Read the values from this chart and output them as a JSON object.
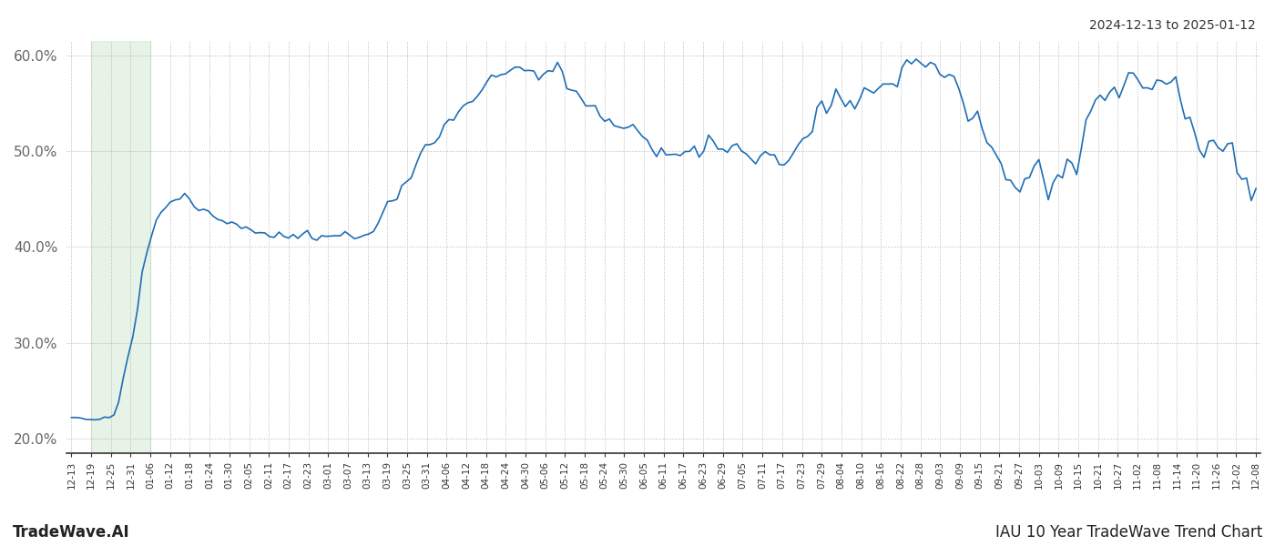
{
  "title_top_right": "2024-12-13 to 2025-01-12",
  "title_bottom_left": "TradeWave.AI",
  "title_bottom_right": "IAU 10 Year TradeWave Trend Chart",
  "line_color": "#1f6eb5",
  "line_width": 1.2,
  "background_color": "#ffffff",
  "grid_color": "#b0b0b0",
  "highlight_color": "#c8e6c9",
  "highlight_alpha": 0.45,
  "ylim": [
    0.185,
    0.615
  ],
  "yticks": [
    0.2,
    0.3,
    0.4,
    0.5,
    0.6
  ],
  "ytick_labels": [
    "20.0%",
    "30.0%",
    "40.0%",
    "50.0%",
    "60.0%"
  ],
  "x_tick_labels": [
    "12-13",
    "12-19",
    "12-25",
    "12-31",
    "01-06",
    "01-12",
    "01-18",
    "01-24",
    "01-30",
    "02-05",
    "02-11",
    "02-17",
    "02-23",
    "03-01",
    "03-07",
    "03-13",
    "03-19",
    "03-25",
    "03-31",
    "04-06",
    "04-12",
    "04-18",
    "04-24",
    "04-30",
    "05-06",
    "05-12",
    "05-18",
    "05-24",
    "05-30",
    "06-05",
    "06-11",
    "06-17",
    "06-23",
    "06-29",
    "07-05",
    "07-11",
    "07-17",
    "07-23",
    "07-29",
    "08-04",
    "08-10",
    "08-16",
    "08-22",
    "08-28",
    "09-03",
    "09-09",
    "09-15",
    "09-21",
    "09-27",
    "10-03",
    "10-09",
    "10-15",
    "10-21",
    "10-27",
    "11-02",
    "11-08",
    "11-14",
    "11-20",
    "11-26",
    "12-02",
    "12-08"
  ],
  "highlight_xstart": 0.065,
  "highlight_xend": 0.162
}
